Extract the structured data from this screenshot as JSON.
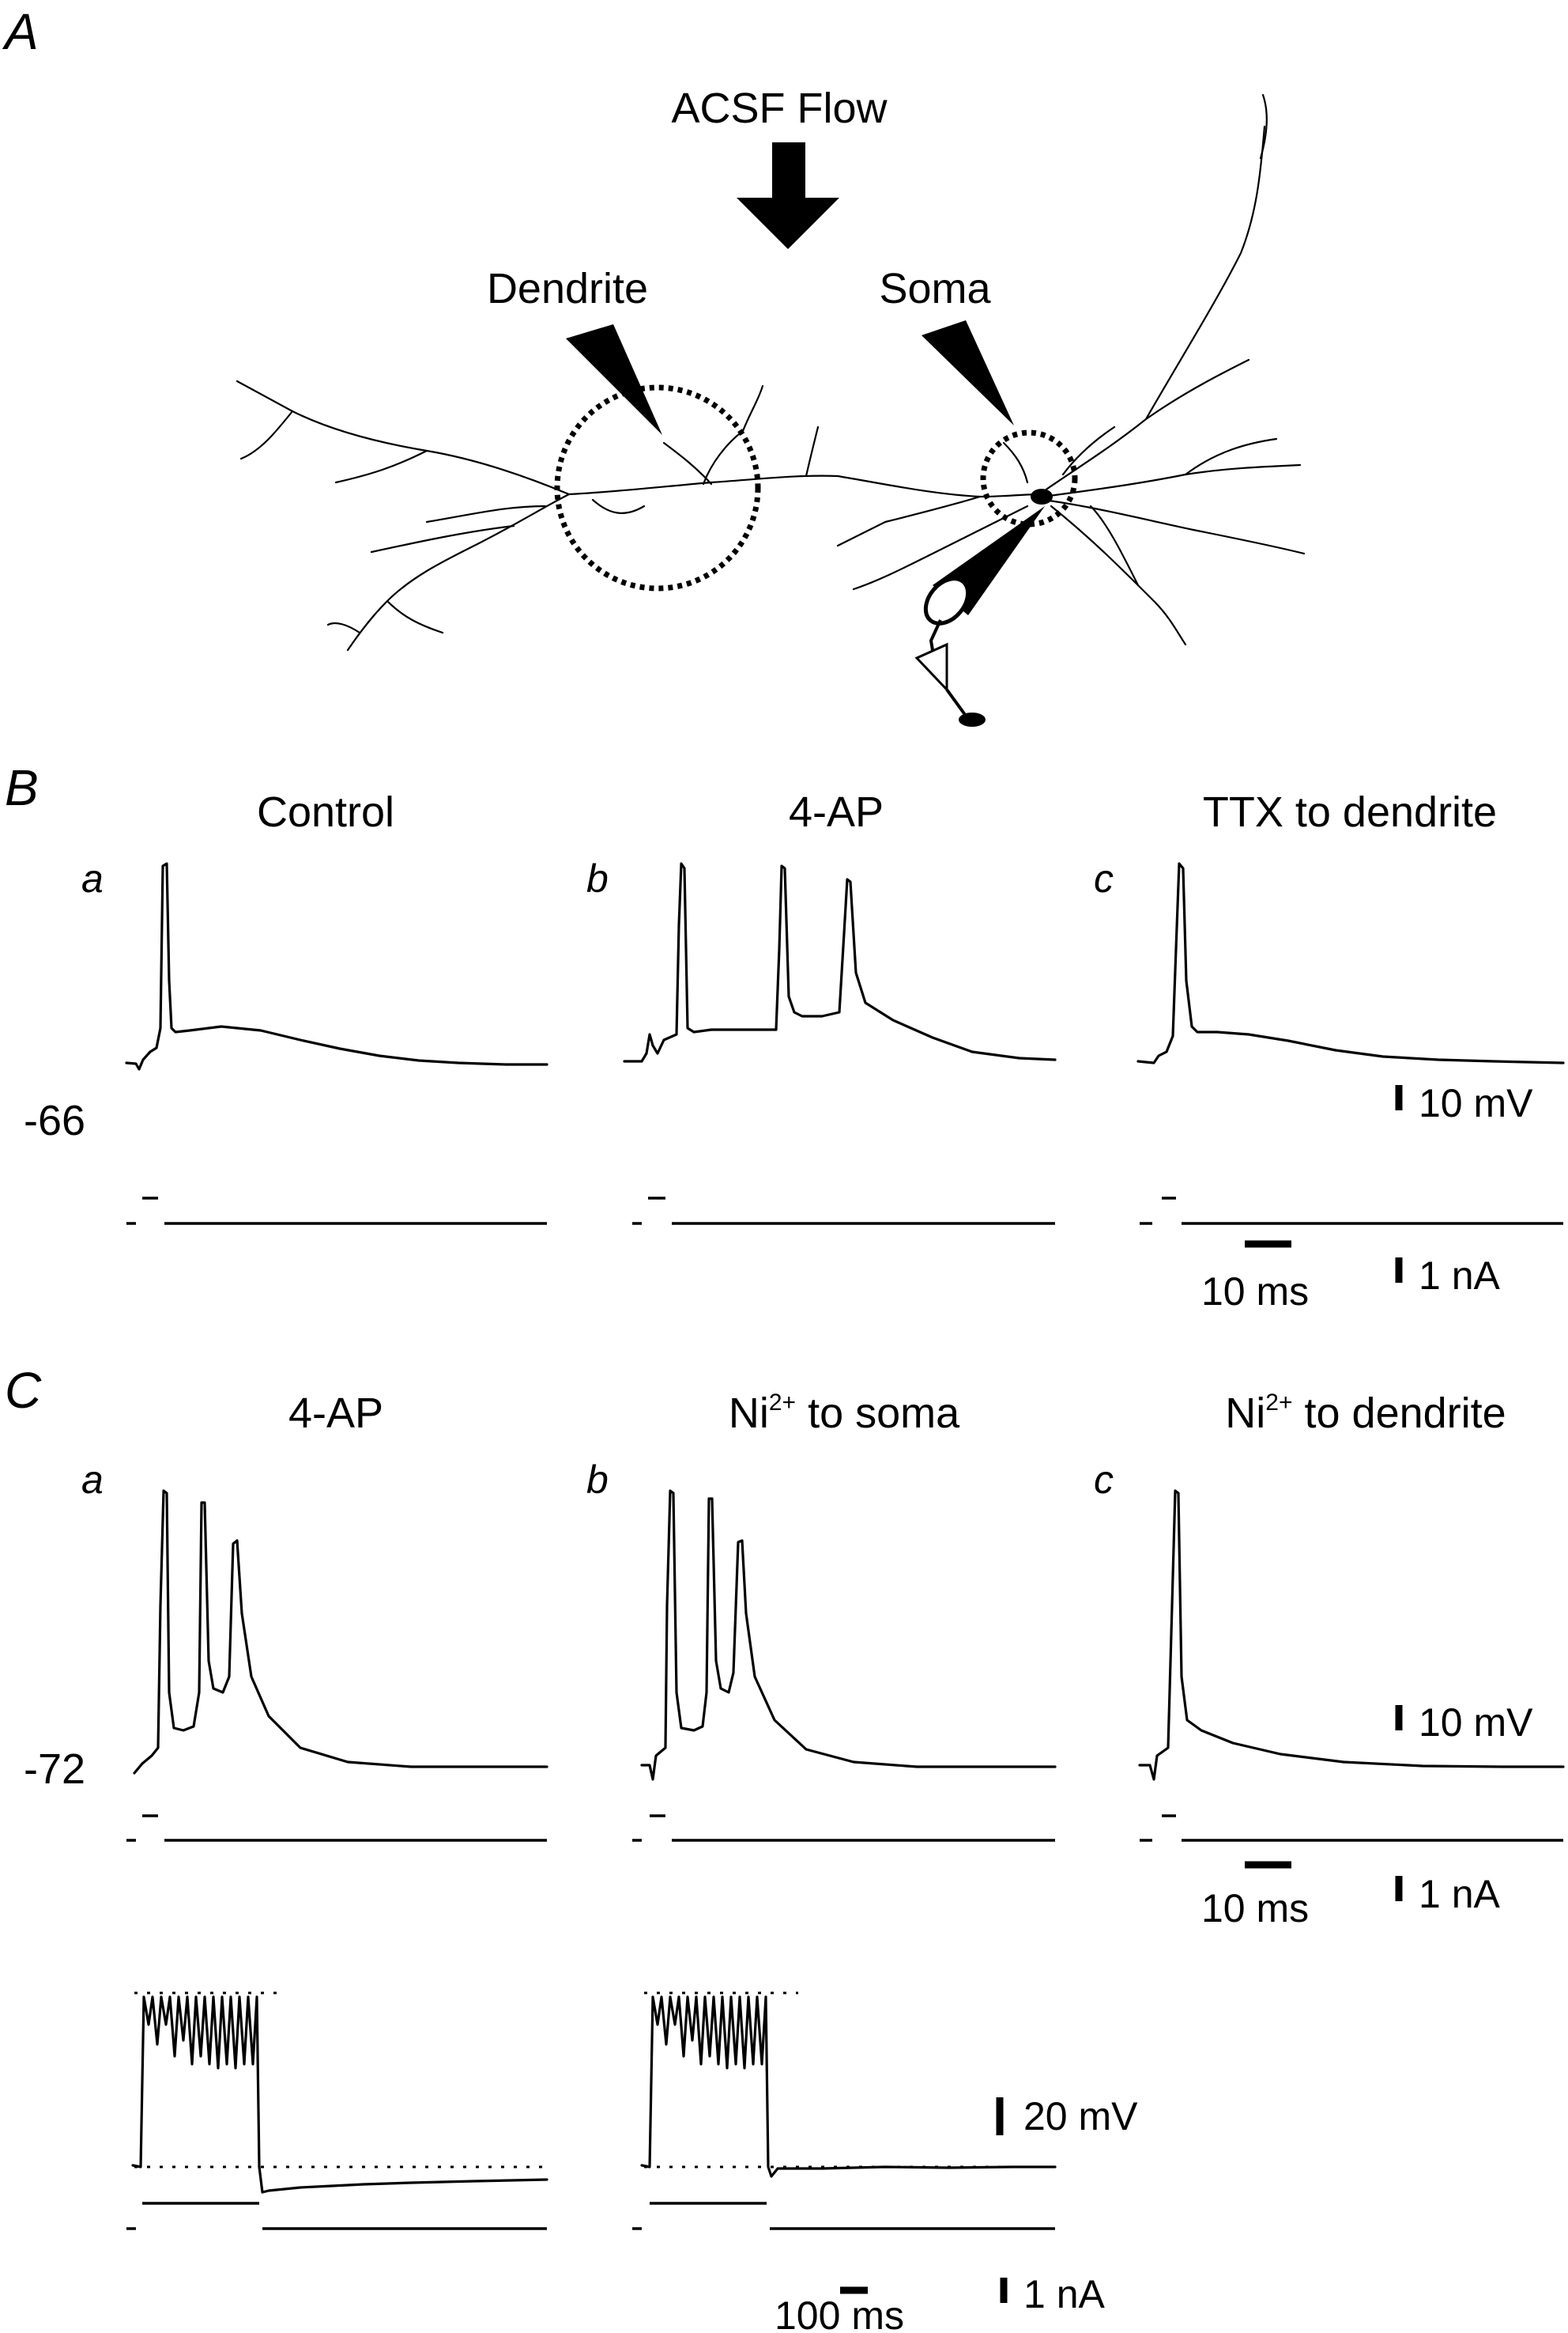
{
  "panels": {
    "A": {
      "letter": "A",
      "flow_label": "ACSF Flow",
      "dendrite_label": "Dendrite",
      "soma_label": "Soma"
    },
    "B": {
      "letter": "B",
      "holding_potential": "-66",
      "subpanels": [
        {
          "letter": "a",
          "title": "Control"
        },
        {
          "letter": "b",
          "title": "4-AP"
        },
        {
          "letter": "c",
          "title": "TTX to dendrite"
        }
      ],
      "scale_voltage": "10 mV",
      "scale_current": "1 nA",
      "scale_time": "10 ms"
    },
    "C": {
      "letter": "C",
      "holding_potential": "-72",
      "subpanels": [
        {
          "letter": "a",
          "title": "4-AP"
        },
        {
          "letter": "b",
          "title_prefix": "Ni",
          "title_sup": "2+",
          "title_suffix": " to soma"
        },
        {
          "letter": "c",
          "title_prefix": "Ni",
          "title_sup": "2+",
          "title_suffix": " to dendrite"
        }
      ],
      "scale_voltage": "10 mV",
      "scale_current": "1 nA",
      "scale_time": "10 ms",
      "long_scale_voltage": "20 mV",
      "long_scale_current": "1 nA",
      "long_scale_time": "100 ms"
    }
  }
}
